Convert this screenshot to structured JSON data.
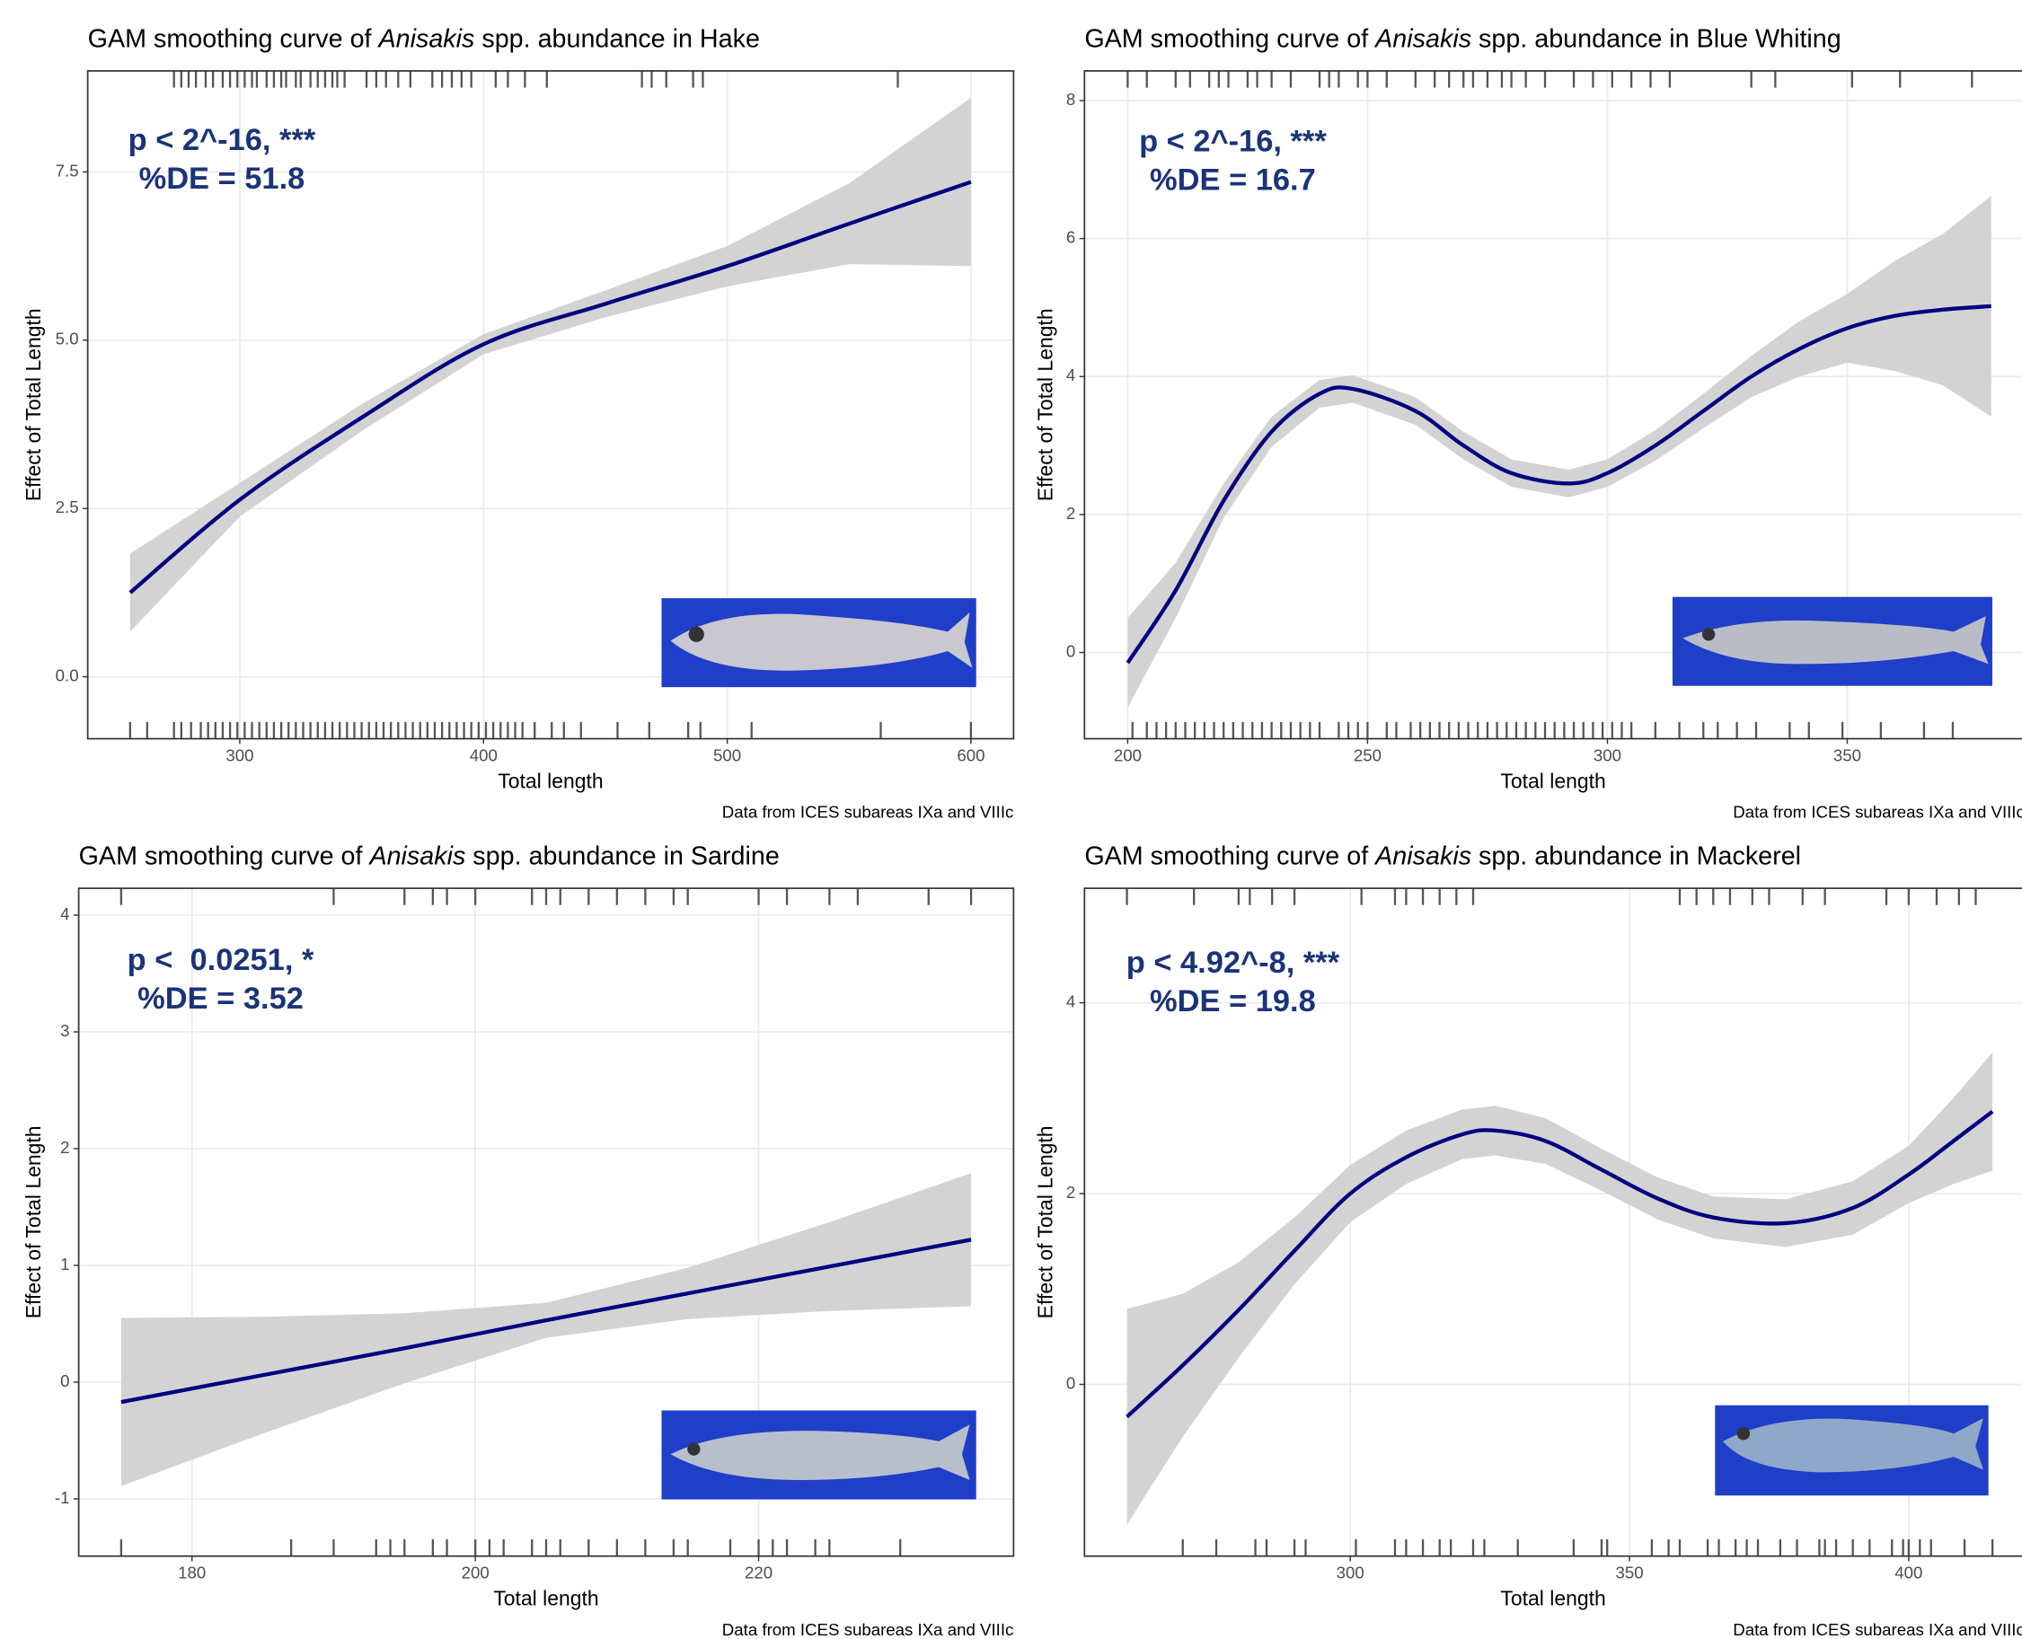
{
  "chart_data": [
    {
      "type": "line",
      "title": [
        "GAM smoothing curve of ",
        "Anisakis",
        " spp. abundance in Hake"
      ],
      "annotation": [
        "p < 2^-16, ***",
        "%DE = 51.8"
      ],
      "x_label": "Total length",
      "y_label": "Effect of Total Length",
      "caption": "Data from ICES subareas IXa and VIIIc",
      "color": "#000080",
      "band_color": "#d3d3d3",
      "grid": true,
      "xlim": [
        237.6,
        617.5
      ],
      "ylim": [
        -0.92,
        9.0
      ],
      "xticks": [
        300,
        400,
        500,
        600
      ],
      "yticks": [
        {
          "value": 0,
          "label": "0.0"
        },
        2.5,
        {
          "value": 5,
          "label": "5.0"
        },
        7.5
      ],
      "x": [
        255,
        300,
        350,
        400,
        450,
        500,
        550,
        600
      ],
      "values": [
        1.25,
        2.63,
        3.85,
        4.94,
        5.54,
        6.1,
        6.73,
        7.35
      ],
      "lower": [
        0.67,
        2.38,
        3.65,
        4.79,
        5.34,
        5.8,
        6.13,
        6.1
      ],
      "upper": [
        1.83,
        2.88,
        4.05,
        5.09,
        5.74,
        6.4,
        7.33,
        8.6
      ],
      "rug_top": [
        273,
        276,
        279,
        282,
        286,
        289,
        293,
        296,
        299,
        302,
        305,
        307,
        311,
        314,
        317,
        319,
        323,
        325,
        329,
        332,
        335,
        338,
        340,
        343,
        352,
        356,
        360,
        365,
        370,
        379,
        383,
        387,
        391,
        395,
        405,
        410,
        417,
        426,
        465,
        469,
        475,
        486,
        490,
        570
      ],
      "rug_bottom": [
        255,
        262,
        273,
        276,
        280,
        284,
        287,
        290,
        293,
        296,
        299,
        302,
        305,
        308,
        311,
        314,
        317,
        320,
        323,
        326,
        329,
        332,
        335,
        338,
        341,
        344,
        347,
        350,
        353,
        356,
        359,
        362,
        365,
        368,
        371,
        374,
        377,
        380,
        383,
        386,
        389,
        392,
        395,
        398,
        401,
        404,
        407,
        410,
        413,
        416,
        421,
        428,
        433,
        440,
        455,
        468,
        484,
        489,
        510,
        563,
        600
      ]
    },
    {
      "type": "line",
      "title": [
        "GAM smoothing curve of ",
        "Anisakis",
        " spp. abundance in Blue Whiting"
      ],
      "annotation": [
        "p < 2^-16, ***",
        "%DE = 16.7"
      ],
      "x_label": "Total length",
      "y_label": "Effect of Total Length",
      "caption": "Data from ICES subareas IXa and VIIIc",
      "color": "#000080",
      "band_color": "#d3d3d3",
      "grid": true,
      "xlim": [
        191,
        388.3
      ],
      "ylim": [
        -1.25,
        8.43
      ],
      "xticks": [
        200,
        250,
        300,
        350
      ],
      "yticks": [
        0,
        2,
        4,
        6,
        8
      ],
      "x": [
        200,
        210,
        220,
        230,
        240,
        247,
        260,
        270,
        280,
        292,
        300,
        310,
        320,
        330,
        340,
        350,
        360,
        370,
        380
      ],
      "values": [
        -0.15,
        0.9,
        2.2,
        3.2,
        3.75,
        3.82,
        3.5,
        3.0,
        2.6,
        2.45,
        2.6,
        3.0,
        3.5,
        4.0,
        4.4,
        4.7,
        4.88,
        4.97,
        5.02
      ],
      "lower": [
        -0.8,
        0.5,
        1.95,
        2.98,
        3.55,
        3.62,
        3.3,
        2.8,
        2.4,
        2.25,
        2.4,
        2.78,
        3.25,
        3.7,
        4.0,
        4.2,
        4.08,
        3.87,
        3.42
      ],
      "upper": [
        0.5,
        1.3,
        2.45,
        3.42,
        3.95,
        4.02,
        3.7,
        3.2,
        2.8,
        2.65,
        2.8,
        3.22,
        3.75,
        4.3,
        4.8,
        5.2,
        5.68,
        6.07,
        6.62
      ],
      "rug_top": [
        200,
        204,
        210,
        213,
        217,
        219,
        221,
        225,
        227,
        230,
        234,
        240,
        242,
        244,
        248,
        250,
        254,
        260,
        264,
        267,
        270,
        272,
        275,
        278,
        280,
        283,
        287,
        293,
        297,
        301,
        305,
        309,
        313,
        330,
        335,
        351,
        361,
        376
      ],
      "rug_bottom": [
        201,
        204,
        206,
        208,
        210,
        212,
        214,
        216,
        218,
        220,
        222,
        224,
        226,
        228,
        230,
        232,
        234,
        236,
        238,
        240,
        244,
        246,
        248,
        250,
        254,
        256,
        259,
        261,
        263,
        265,
        267,
        269,
        271,
        273,
        275,
        277,
        279,
        281,
        283,
        285,
        287,
        289,
        291,
        293,
        295,
        297,
        299,
        301,
        303,
        305,
        310,
        315,
        320,
        323,
        327,
        331,
        338,
        342,
        349,
        357,
        366,
        372
      ]
    },
    {
      "type": "line",
      "title": [
        "GAM smoothing curve of ",
        "Anisakis",
        " spp. abundance in Sardine"
      ],
      "annotation": [
        "p <  0.0251, *",
        "%DE = 3.52"
      ],
      "x_label": "Total length",
      "y_label": "Effect of Total Length",
      "caption": "Data from ICES subareas IXa and VIIIc",
      "color": "#000080",
      "band_color": "#d3d3d3",
      "grid": true,
      "xlim": [
        172,
        238
      ],
      "ylim": [
        -1.49,
        4.23
      ],
      "xticks": [
        180,
        200,
        220
      ],
      "yticks": [
        -1,
        0,
        1,
        2,
        3,
        4
      ],
      "x": [
        175,
        185,
        195,
        205,
        215,
        225,
        235
      ],
      "values": [
        -0.17,
        0.06,
        0.29,
        0.53,
        0.76,
        0.99,
        1.22
      ],
      "lower": [
        -0.89,
        -0.44,
        -0.01,
        0.38,
        0.54,
        0.61,
        0.65
      ],
      "upper": [
        0.55,
        0.56,
        0.59,
        0.68,
        0.98,
        1.37,
        1.79
      ],
      "rug_top": [
        175,
        190,
        195,
        197,
        198,
        200,
        204,
        205,
        206,
        208,
        210,
        212,
        214,
        215,
        220,
        222,
        225,
        227,
        232,
        235
      ],
      "rug_bottom": [
        175,
        187,
        190,
        193,
        194,
        195,
        197,
        198,
        200,
        201,
        202,
        204,
        205,
        206,
        208,
        210,
        212,
        214,
        215,
        218,
        220,
        221,
        222,
        224,
        225,
        230
      ]
    },
    {
      "type": "line",
      "title": [
        "GAM smoothing curve of ",
        "Anisakis",
        " spp. abundance in Mackerel"
      ],
      "annotation": [
        "p < 4.92^-8, ***",
        "%DE = 19.8"
      ],
      "x_label": "Total length",
      "y_label": "Effect of Total Length",
      "caption": "Data from ICES subareas IXa and VIIIc",
      "color": "#000080",
      "band_color": "#d3d3d3",
      "grid": true,
      "xlim": [
        252.4,
        421.9
      ],
      "ylim": [
        -1.8,
        5.2
      ],
      "xticks": [
        300,
        350,
        400
      ],
      "yticks": [
        0,
        2,
        4
      ],
      "x": [
        260,
        270,
        280,
        290,
        300,
        310,
        320,
        326,
        335,
        345,
        355,
        365,
        378,
        390,
        400,
        408,
        415
      ],
      "values": [
        -0.34,
        0.2,
        0.78,
        1.4,
        2.0,
        2.38,
        2.62,
        2.66,
        2.55,
        2.25,
        1.95,
        1.75,
        1.69,
        1.85,
        2.2,
        2.55,
        2.86
      ],
      "lower": [
        -1.47,
        -0.55,
        0.28,
        1.05,
        1.7,
        2.1,
        2.36,
        2.4,
        2.31,
        2.03,
        1.73,
        1.53,
        1.44,
        1.57,
        1.9,
        2.1,
        2.24
      ],
      "upper": [
        0.79,
        0.95,
        1.28,
        1.75,
        2.3,
        2.66,
        2.88,
        2.92,
        2.79,
        2.47,
        2.17,
        1.97,
        1.94,
        2.13,
        2.5,
        3.0,
        3.48
      ],
      "rug_top": [
        260,
        272,
        280,
        282,
        286,
        290,
        302,
        308,
        310,
        313,
        316,
        319,
        322,
        359,
        362,
        365,
        368,
        372,
        375,
        381,
        385,
        396,
        400,
        405,
        409,
        412
      ],
      "rug_bottom": [
        270,
        276,
        283,
        285,
        290,
        292,
        301,
        308,
        310,
        313,
        316,
        318,
        322,
        324,
        330,
        340,
        345,
        346,
        354,
        357,
        359,
        364,
        366,
        369,
        371,
        373,
        377,
        380,
        384,
        385,
        387,
        390,
        393,
        397,
        399,
        400,
        402,
        404,
        410,
        415
      ]
    }
  ]
}
